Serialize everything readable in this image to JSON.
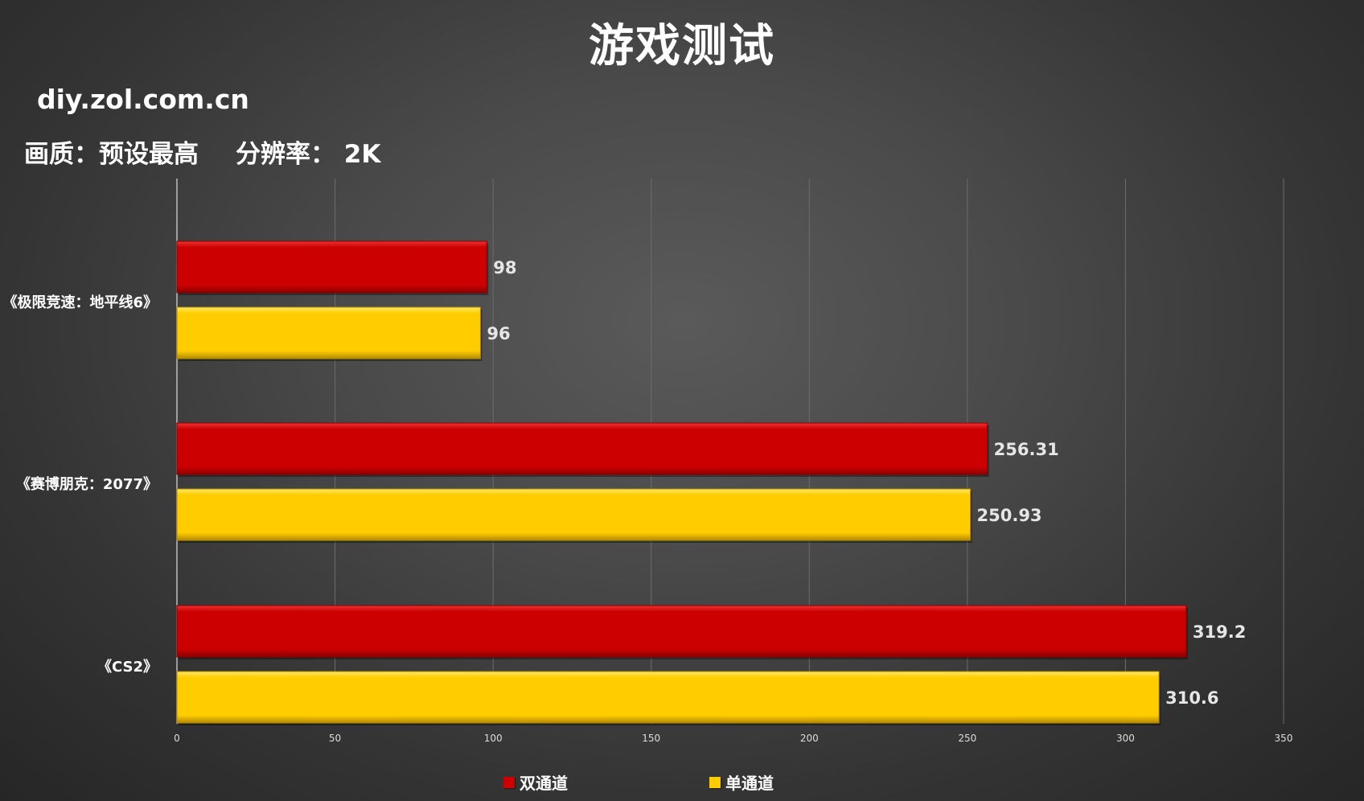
{
  "header": {
    "title": "游戏测试",
    "site": "diy.zol.com.cn",
    "quality_label": "画质：预设最高",
    "resolution_label": "分辨率： 2K"
  },
  "colors": {
    "dual_channel": "#cc0000",
    "single_channel": "#ffcc00"
  },
  "chart_data": {
    "type": "bar",
    "orientation": "horizontal",
    "title": "游戏测试",
    "categories": [
      "《极限竞速：地平线6》",
      "《赛博朋克：2077》",
      "《CS2》"
    ],
    "series": [
      {
        "name": "双通道",
        "values": [
          98,
          256.31,
          319.2
        ],
        "labels": [
          "98",
          "256.31",
          "319.2"
        ]
      },
      {
        "name": "单通道",
        "values": [
          96,
          250.93,
          310.6
        ],
        "labels": [
          "96",
          "250.93",
          "310.6"
        ]
      }
    ],
    "xlim": [
      0,
      350
    ],
    "x_ticks": [
      "0",
      "50",
      "100",
      "150",
      "200",
      "250",
      "300",
      "350"
    ],
    "grid": true,
    "legend_position": "bottom"
  }
}
